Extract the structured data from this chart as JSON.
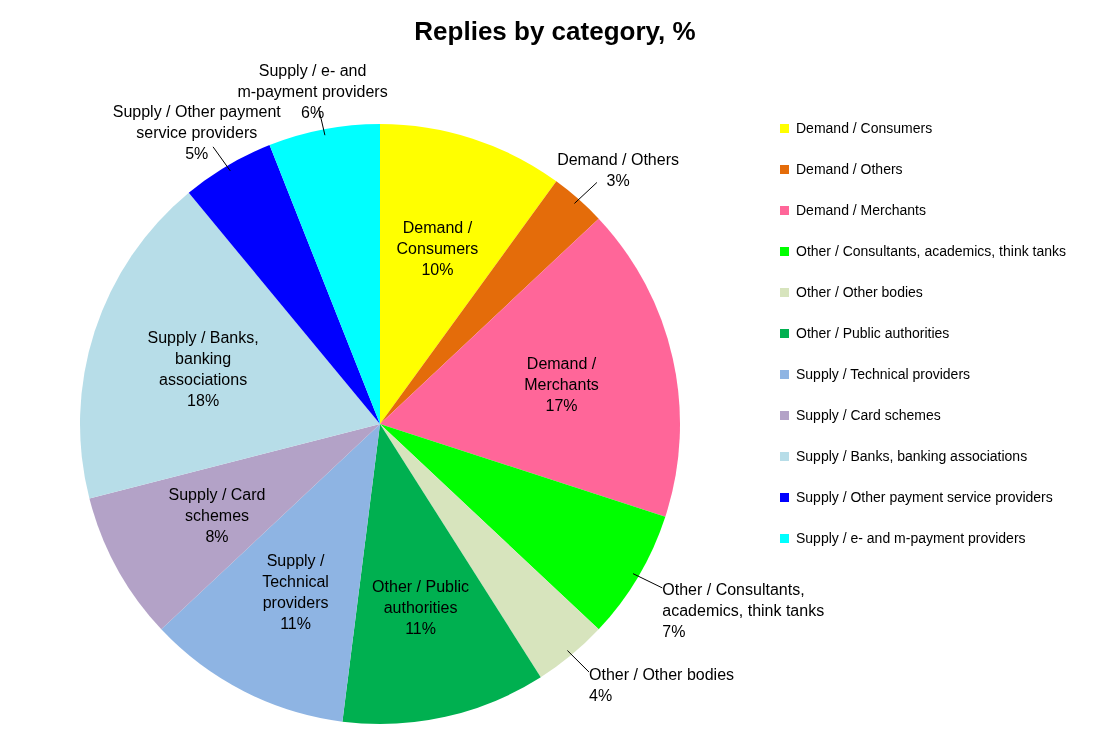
{
  "chart_data": {
    "type": "pie",
    "title": "Replies by category, %",
    "categories": [
      "Demand / Consumers",
      "Demand / Others",
      "Demand / Merchants",
      "Other / Consultants, academics, think tanks",
      "Other / Other bodies",
      "Other / Public authorities",
      "Supply / Technical providers",
      "Supply / Card schemes",
      "Supply / Banks, banking associations",
      "Supply / Other payment service providers",
      "Supply / e- and m-payment providers"
    ],
    "values": [
      10,
      3,
      17,
      7,
      4,
      11,
      11,
      8,
      18,
      5,
      6
    ],
    "value_labels": [
      "10%",
      "3%",
      "17%",
      "7%",
      "4%",
      "11%",
      "11%",
      "8%",
      "18%",
      "5%",
      "6%"
    ],
    "colors": [
      "#ffff00",
      "#e46c0a",
      "#ff6699",
      "#00ff00",
      "#d7e4bd",
      "#00b050",
      "#8eb4e3",
      "#b3a2c7",
      "#b7dde8",
      "#0000ff",
      "#00ffff"
    ],
    "legend": "right"
  }
}
